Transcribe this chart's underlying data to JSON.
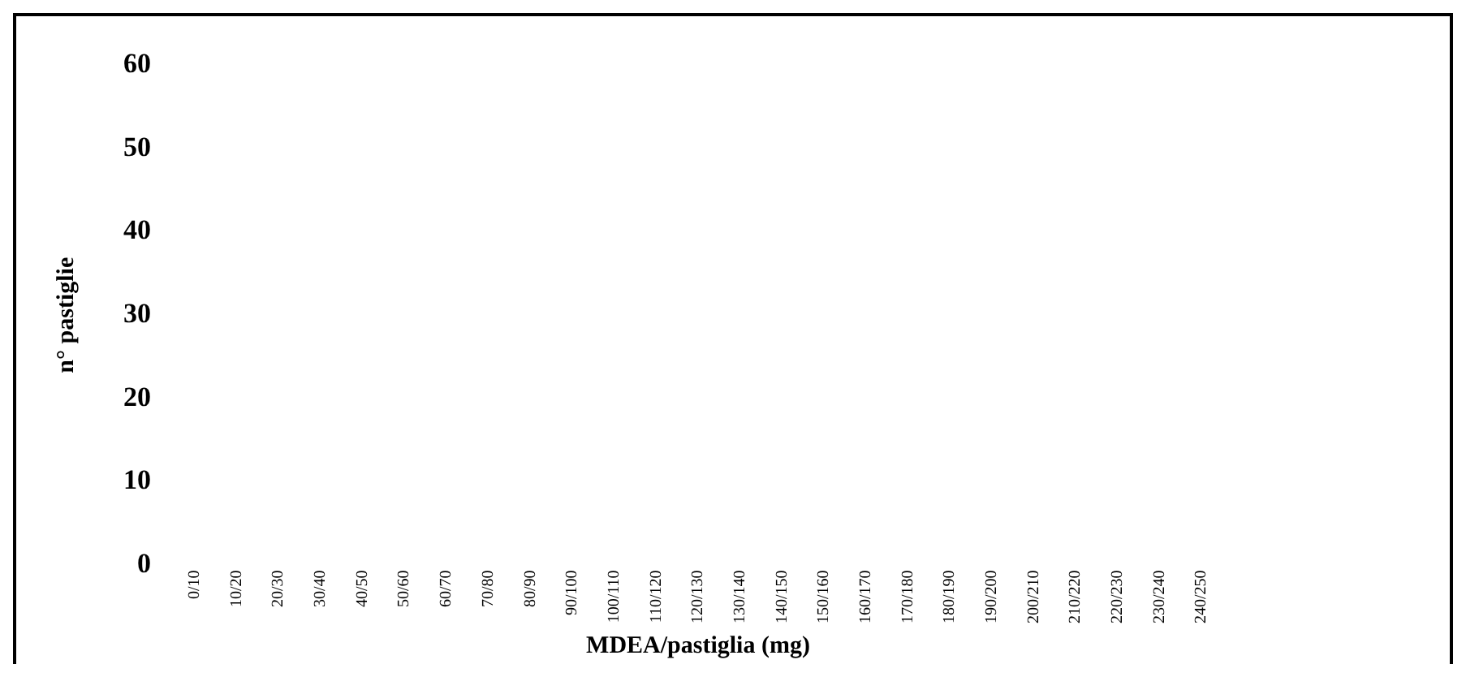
{
  "chart_data": {
    "type": "bar",
    "xlabel": "MDEA/pastiglia (mg)",
    "ylabel": "n° pastiglie",
    "categories": [
      "0/10",
      "10/20",
      "20/30",
      "30/40",
      "40/50",
      "50/60",
      "60/70",
      "70/80",
      "80/90",
      "90/100",
      "100/110",
      "110/120",
      "120/130",
      "130/140",
      "140/150",
      "150/160",
      "160/170",
      "170/180",
      "180/190",
      "190/200",
      "200/210",
      "210/220",
      "220/230",
      "230/240",
      "240/250"
    ],
    "values": [
      0,
      0,
      0,
      0,
      0,
      0,
      0,
      0,
      0,
      0,
      0,
      0,
      0,
      0,
      0,
      0,
      0,
      0,
      0,
      0,
      0,
      0,
      0,
      0,
      0
    ],
    "ylim": [
      0,
      60
    ],
    "yticks": [
      0,
      10,
      20,
      30,
      40,
      50,
      60
    ],
    "grid": false,
    "legend": false
  }
}
